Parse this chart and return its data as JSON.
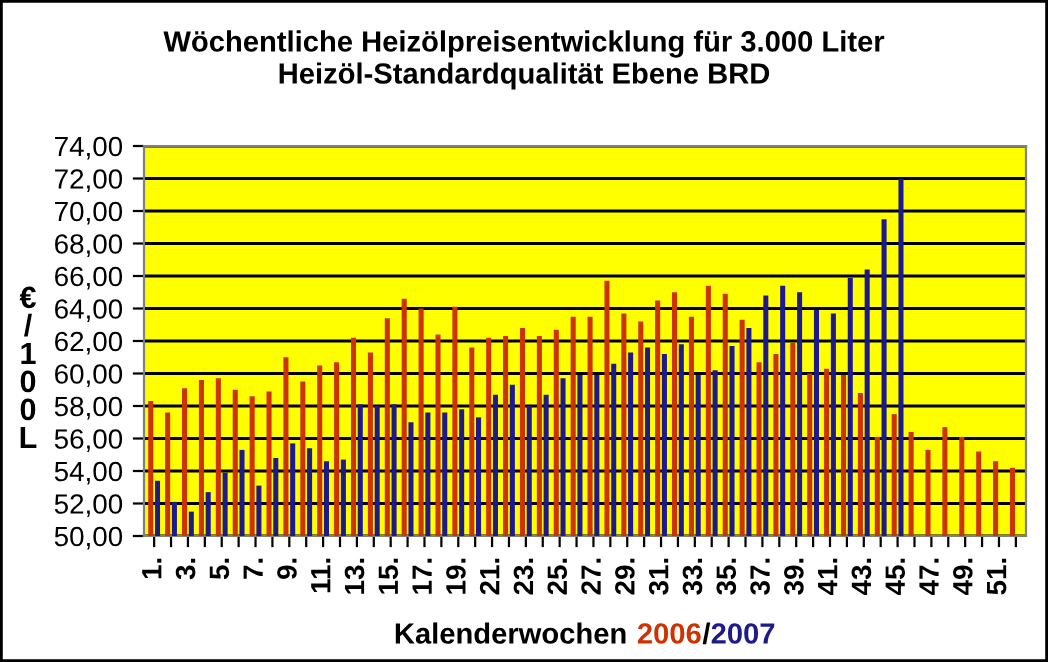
{
  "chart_data": {
    "type": "bar",
    "title": "Wöchentliche Heizölpreisentwicklung für 3.000 Liter",
    "subtitle": "Heizöl-Standardqualität Ebene BRD",
    "xlabel": "Kalenderwochen",
    "ylabel": "€/100L",
    "categories": [
      "1.",
      null,
      "3.",
      null,
      "5.",
      null,
      "7.",
      null,
      "9.",
      null,
      "11.",
      null,
      "13.",
      null,
      "15.",
      null,
      "17.",
      null,
      "19.",
      null,
      "21.",
      null,
      "23.",
      null,
      "25.",
      null,
      "27.",
      null,
      "29.",
      null,
      "31.",
      null,
      "33.",
      null,
      "35.",
      null,
      "37.",
      null,
      "39.",
      null,
      "41.",
      null,
      "43.",
      null,
      "45.",
      null,
      "47.",
      null,
      "49.",
      null,
      "51.",
      null
    ],
    "series": [
      {
        "name": "2006",
        "color": "#cc3300",
        "values": [
          58.3,
          57.6,
          59.1,
          59.6,
          59.7,
          59.0,
          58.6,
          58.9,
          61.0,
          59.5,
          60.5,
          60.7,
          62.2,
          61.3,
          63.4,
          64.6,
          64.0,
          62.4,
          64.1,
          61.6,
          62.2,
          62.3,
          62.8,
          62.3,
          62.7,
          63.5,
          63.5,
          65.7,
          63.7,
          63.2,
          64.5,
          65.0,
          63.5,
          65.4,
          64.9,
          63.3,
          60.7,
          61.2,
          61.9,
          60.0,
          60.3,
          59.9,
          58.8,
          56.1,
          57.5,
          56.4,
          55.3,
          56.7,
          56.1,
          55.2,
          54.6,
          54.2
        ]
      },
      {
        "name": "2007",
        "color": "#1f1a8c",
        "values": [
          53.4,
          52.1,
          51.5,
          52.7,
          53.9,
          55.3,
          53.1,
          54.8,
          55.7,
          55.4,
          54.6,
          54.7,
          58.1,
          58.0,
          58.1,
          57.0,
          57.6,
          57.6,
          57.8,
          57.3,
          58.7,
          59.3,
          58.0,
          58.7,
          59.7,
          59.9,
          59.9,
          60.6,
          61.3,
          61.6,
          61.2,
          61.8,
          59.9,
          60.2,
          61.7,
          62.8,
          64.8,
          65.4,
          65.0,
          63.9,
          63.7,
          65.9,
          66.4,
          69.5,
          72.0,
          null,
          null,
          null,
          null,
          null,
          null,
          null
        ]
      }
    ],
    "ylim": [
      50,
      74
    ],
    "yticks": [
      {
        "value": 50,
        "label": "50,00"
      },
      {
        "value": 52,
        "label": "52,00"
      },
      {
        "value": 54,
        "label": "54,00"
      },
      {
        "value": 56,
        "label": "56,00"
      },
      {
        "value": 58,
        "label": "58,00"
      },
      {
        "value": 60,
        "label": "60,00"
      },
      {
        "value": 62,
        "label": "62,00"
      },
      {
        "value": 64,
        "label": "64,00"
      },
      {
        "value": 66,
        "label": "66,00"
      },
      {
        "value": 68,
        "label": "68,00"
      },
      {
        "value": 70,
        "label": "70,00"
      },
      {
        "value": 72,
        "label": "72,00"
      },
      {
        "value": 74,
        "label": "74,00"
      }
    ],
    "grid": "y",
    "annotations": [
      "/"
    ]
  }
}
